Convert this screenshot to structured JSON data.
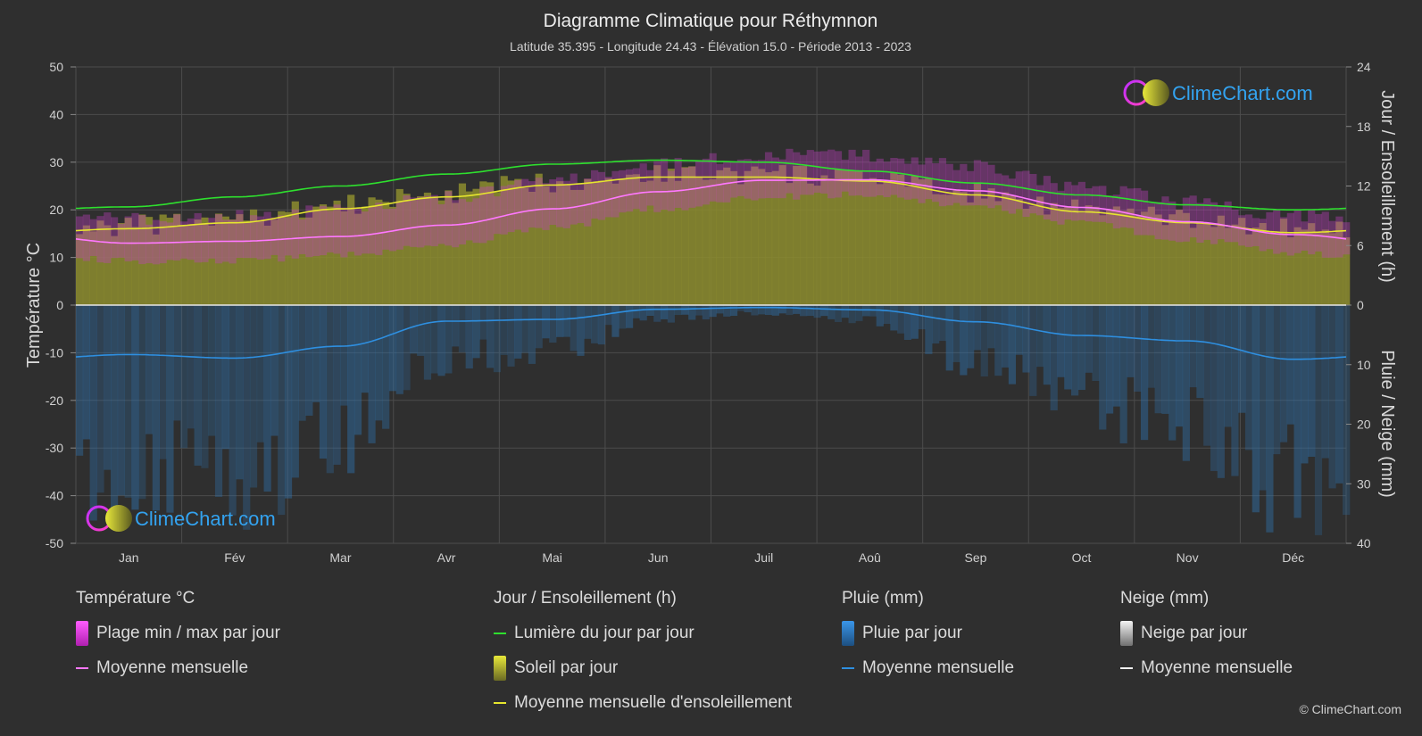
{
  "chart_data": {
    "type": "area",
    "title": "Diagramme Climatique pour Réthymnon",
    "subtitle": "Latitude 35.395 - Longitude 24.43 - Élévation 15.0 - Période 2013 - 2023",
    "categories": [
      "Jan",
      "Fév",
      "Mar",
      "Avr",
      "Mai",
      "Jun",
      "Juil",
      "Aoû",
      "Sep",
      "Oct",
      "Nov",
      "Déc"
    ],
    "y_left": {
      "label": "Température °C",
      "range": [
        -50,
        50
      ],
      "ticks": [
        "50",
        "40",
        "30",
        "20",
        "10",
        "0",
        "-10",
        "-20",
        "-30",
        "-40",
        "-50"
      ]
    },
    "y_right_top": {
      "label": "Jour / Ensoleillement (h)",
      "range": [
        0,
        24
      ],
      "ticks": [
        "24",
        "18",
        "12",
        "6",
        "0"
      ]
    },
    "y_right_bottom": {
      "label": "Pluie / Neige (mm)",
      "range": [
        0,
        40
      ],
      "ticks": [
        "0",
        "10",
        "20",
        "30",
        "40"
      ]
    },
    "grid": true,
    "series": [
      {
        "name": "Lumière du jour par jour",
        "unit": "h",
        "color": "#2ee02e",
        "values": [
          9.9,
          10.9,
          12.0,
          13.2,
          14.2,
          14.6,
          14.4,
          13.5,
          12.3,
          11.1,
          10.1,
          9.6
        ]
      },
      {
        "name": "Moyenne mensuelle d'ensoleillement",
        "unit": "h",
        "color": "#e6e62e",
        "values": [
          7.7,
          8.3,
          9.7,
          10.9,
          12.1,
          12.9,
          12.9,
          12.5,
          11.1,
          9.4,
          8.3,
          7.3
        ]
      },
      {
        "name": "Moyenne mensuelle",
        "group": "Température °C",
        "unit": "°C",
        "color": "#ff78ff",
        "values": [
          13.0,
          13.4,
          14.4,
          16.8,
          20.2,
          23.8,
          26.2,
          26.3,
          24.0,
          20.5,
          17.5,
          14.8
        ]
      },
      {
        "name": "Moyenne mensuelle",
        "group": "Pluie (mm)",
        "unit": "mm",
        "color": "#2e8fe0",
        "values": [
          8.3,
          8.9,
          6.9,
          2.7,
          2.4,
          0.7,
          0.4,
          0.8,
          2.8,
          5.1,
          6.0,
          9.1
        ]
      },
      {
        "name": "Plage min / max par jour",
        "group": "Température °C",
        "unit": "°C",
        "min": [
          10.0,
          10.2,
          11.2,
          13.5,
          17.0,
          21.0,
          23.5,
          24.0,
          21.5,
          18.0,
          14.5,
          11.8
        ],
        "max": [
          16.5,
          17.0,
          18.2,
          21.0,
          24.5,
          28.0,
          30.0,
          30.0,
          27.5,
          23.5,
          20.0,
          17.5
        ]
      }
    ],
    "legend": {
      "groups": [
        {
          "title": "Température °C",
          "items": [
            {
              "label": "Plage min / max par jour",
              "kind": "box",
              "color": "#e040e0"
            },
            {
              "label": "Moyenne mensuelle",
              "kind": "line",
              "color": "#ff78ff"
            }
          ]
        },
        {
          "title": "Jour / Ensoleillement (h)",
          "items": [
            {
              "label": "Lumière du jour par jour",
              "kind": "line",
              "color": "#2ee02e"
            },
            {
              "label": "Soleil par jour",
              "kind": "box",
              "color": "#c8c832"
            },
            {
              "label": "Moyenne mensuelle d'ensoleillement",
              "kind": "line",
              "color": "#e6e62e"
            }
          ]
        },
        {
          "title": "Pluie (mm)",
          "items": [
            {
              "label": "Pluie par jour",
              "kind": "box",
              "color": "#2f86d8"
            },
            {
              "label": "Moyenne mensuelle",
              "kind": "line",
              "color": "#2e8fe0"
            }
          ]
        },
        {
          "title": "Neige (mm)",
          "items": [
            {
              "label": "Neige par jour",
              "kind": "box",
              "color": "#e0e0e0"
            },
            {
              "label": "Moyenne mensuelle",
              "kind": "line",
              "color": "#f0f0f0"
            }
          ]
        }
      ]
    }
  },
  "brand": {
    "name": "ClimeChart.com",
    "copyright": "© ClimeChart.com"
  }
}
